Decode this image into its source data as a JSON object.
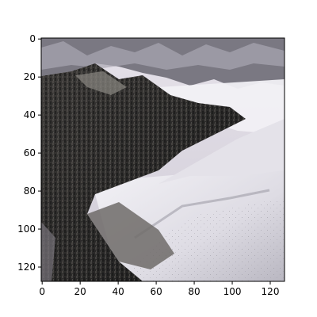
{
  "image_panel": {
    "subject": "snowy mountain ridge with dark rocky cliff",
    "x_axis": {
      "range": [
        0,
        127
      ],
      "ticks": [
        {
          "value": 0,
          "label": "0"
        },
        {
          "value": 20,
          "label": "20"
        },
        {
          "value": 40,
          "label": "40"
        },
        {
          "value": 60,
          "label": "60"
        },
        {
          "value": 80,
          "label": "80"
        },
        {
          "value": 100,
          "label": "100"
        },
        {
          "value": 120,
          "label": "120"
        }
      ]
    },
    "y_axis": {
      "range": [
        0,
        127
      ],
      "inverted": true,
      "ticks": [
        {
          "value": 0,
          "label": "0"
        },
        {
          "value": 20,
          "label": "20"
        },
        {
          "value": 40,
          "label": "40"
        },
        {
          "value": 60,
          "label": "60"
        },
        {
          "value": 80,
          "label": "80"
        },
        {
          "value": 100,
          "label": "100"
        },
        {
          "value": 120,
          "label": "120"
        }
      ]
    },
    "colors": {
      "sky": "#dcd8e2",
      "distant_peaks": "#7e7c86",
      "snow": "#ecebf0",
      "snow_shade": "#c9c7d0",
      "rock_dark": "#2a2a2a",
      "rock_mid": "#4a4846",
      "clouds": "#f2f1f4"
    }
  }
}
